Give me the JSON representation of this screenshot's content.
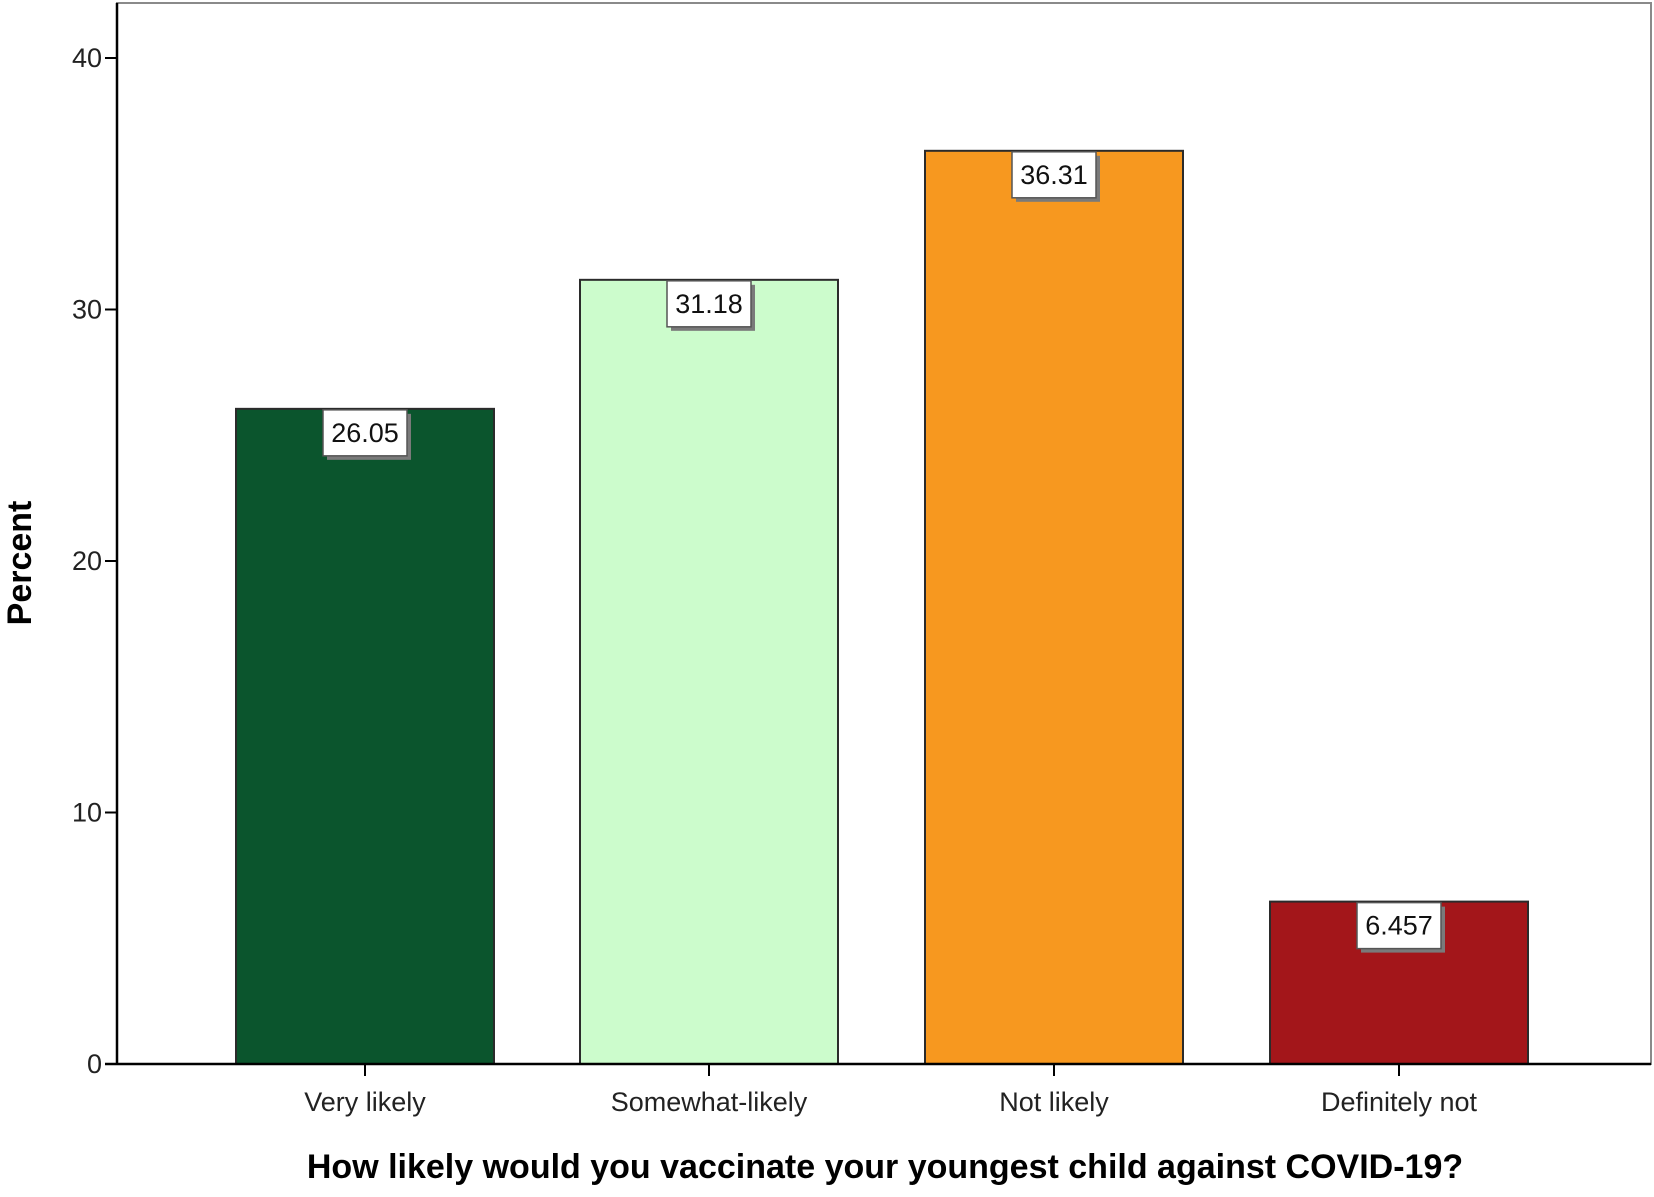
{
  "chart_data": {
    "type": "bar",
    "title": "",
    "xlabel": "How likely would you vaccinate your youngest child against COVID-19?",
    "ylabel": "Percent",
    "categories": [
      "Very likely",
      "Somewhat-likely",
      "Not likely",
      "Definitely not"
    ],
    "values": [
      26.05,
      31.18,
      36.31,
      6.457
    ],
    "value_labels": [
      "26.05",
      "31.18",
      "36.31",
      "6.457"
    ],
    "bar_colors": [
      "#0b552d",
      "#ccfccc",
      "#f7981f",
      "#a3161a"
    ],
    "ylim": [
      0,
      42
    ],
    "yticks": [
      0,
      10,
      20,
      30,
      40
    ],
    "grid": false,
    "legend": "none"
  }
}
